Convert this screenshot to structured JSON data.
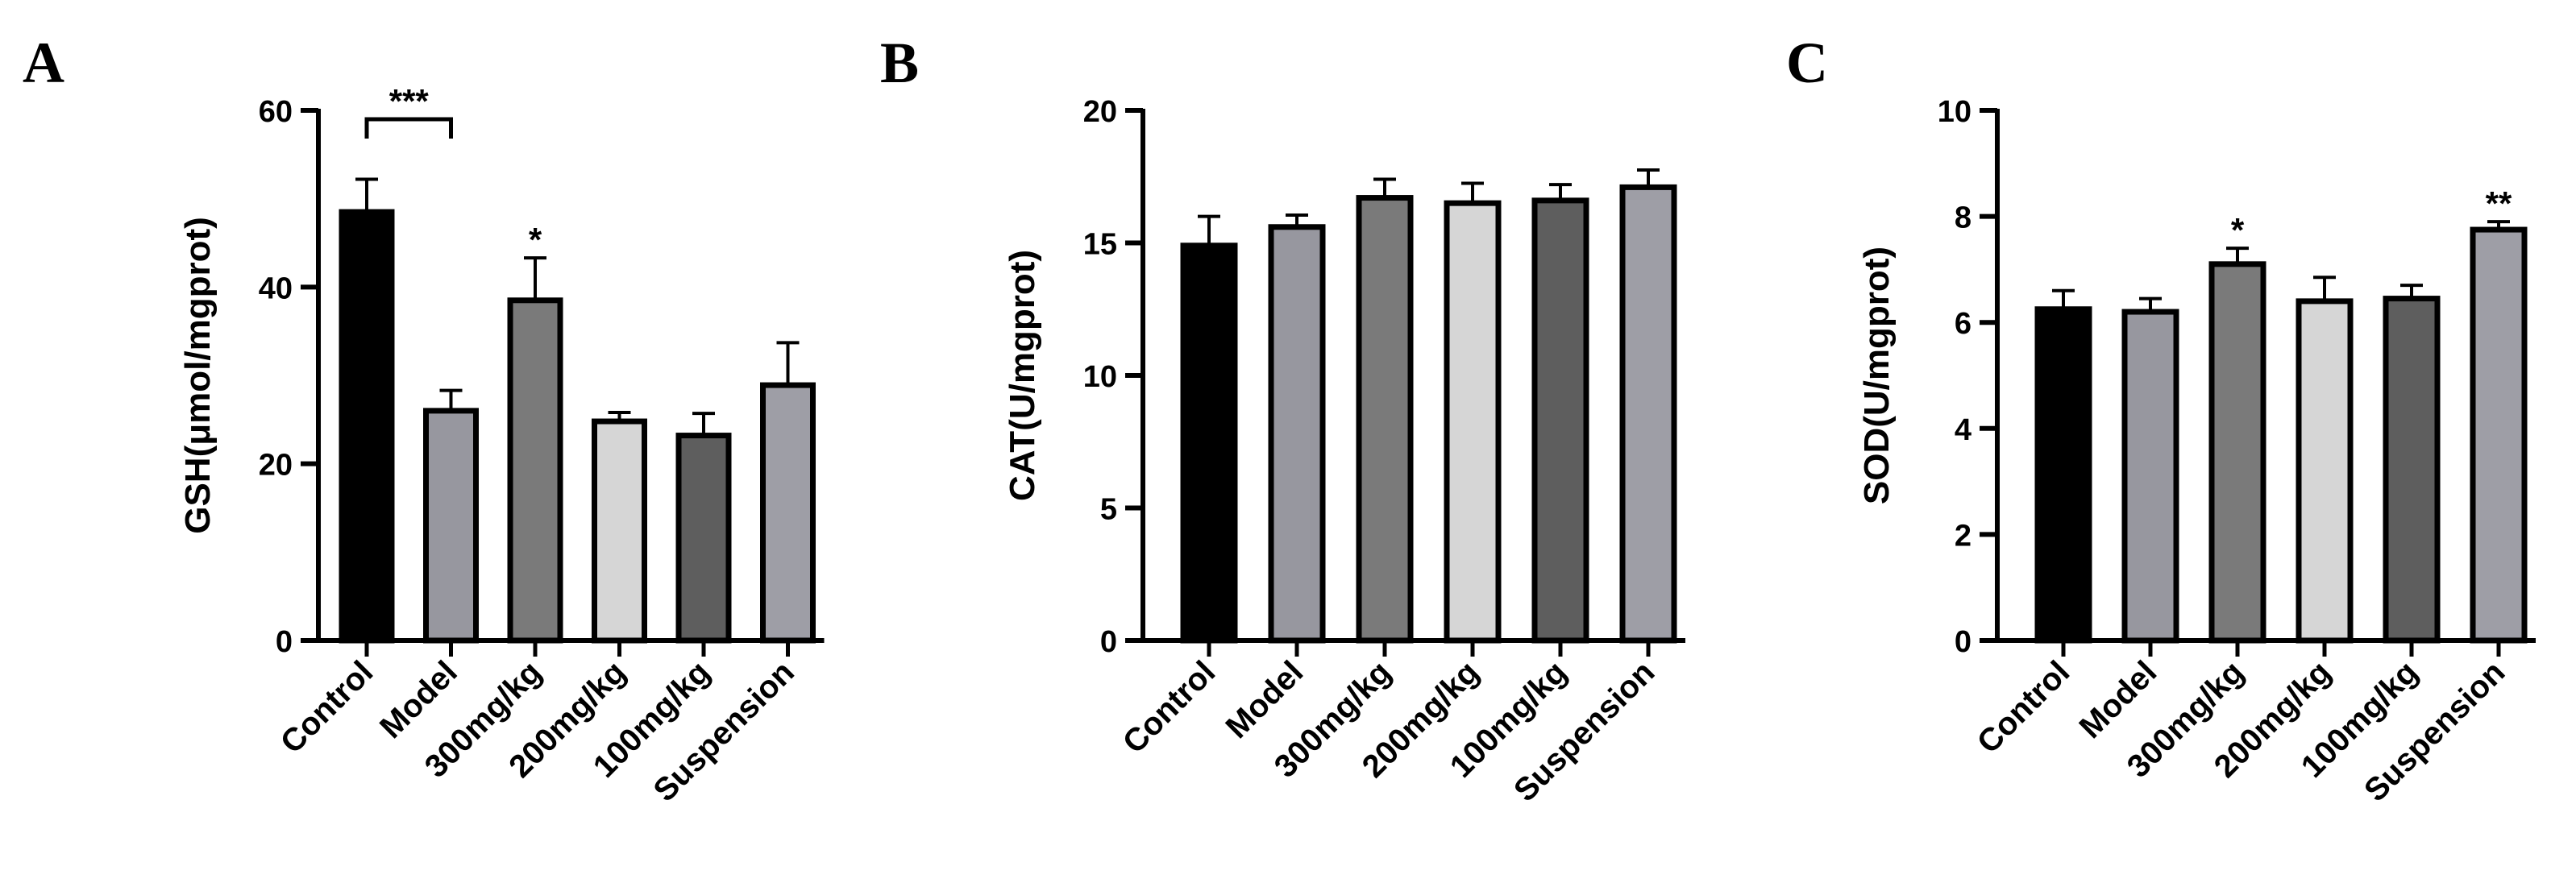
{
  "chart_data": [
    {
      "type": "bar",
      "panel": "A",
      "ylabel": "GSH(μmol/mgprot)",
      "ylim": [
        0,
        60
      ],
      "yticks": [
        0,
        20,
        40,
        60
      ],
      "categories": [
        "Control",
        "Model",
        "300mg/kg",
        "200mg/kg",
        "100mg/kg",
        "Suspension"
      ],
      "values": [
        48.5,
        26.0,
        38.5,
        24.8,
        23.2,
        28.9
      ],
      "errors": [
        3.7,
        2.3,
        4.8,
        1.0,
        2.5,
        4.8
      ],
      "colors": [
        "#000000",
        "#97979f",
        "#7a7a7a",
        "#d6d6d6",
        "#5e5e5e",
        "#9e9ea6"
      ],
      "significance": [
        {
          "label": "***",
          "from": 0,
          "to": 1,
          "y": 59
        },
        {
          "label": "*",
          "index": 2
        }
      ],
      "grid": false
    },
    {
      "type": "bar",
      "panel": "B",
      "ylabel": "CAT(U/mgprot)",
      "ylim": [
        0,
        20
      ],
      "yticks": [
        0,
        5,
        10,
        15,
        20
      ],
      "categories": [
        "Control",
        "Model",
        "300mg/kg",
        "200mg/kg",
        "100mg/kg",
        "Suspension"
      ],
      "values": [
        14.9,
        15.6,
        16.7,
        16.5,
        16.6,
        17.1
      ],
      "errors": [
        1.1,
        0.45,
        0.7,
        0.75,
        0.6,
        0.65
      ],
      "colors": [
        "#000000",
        "#97979f",
        "#7a7a7a",
        "#d6d6d6",
        "#5e5e5e",
        "#9e9ea6"
      ],
      "significance": [],
      "grid": false
    },
    {
      "type": "bar",
      "panel": "C",
      "ylabel": "SOD(U/mgprot)",
      "ylim": [
        0,
        10
      ],
      "yticks": [
        0,
        2,
        4,
        6,
        8,
        10
      ],
      "categories": [
        "Control",
        "Model",
        "300mg/kg",
        "200mg/kg",
        "100mg/kg",
        "Suspension"
      ],
      "values": [
        6.25,
        6.2,
        7.1,
        6.4,
        6.45,
        7.75
      ],
      "errors": [
        0.35,
        0.25,
        0.3,
        0.45,
        0.25,
        0.15
      ],
      "colors": [
        "#000000",
        "#97979f",
        "#7a7a7a",
        "#d6d6d6",
        "#5e5e5e",
        "#9e9ea6"
      ],
      "significance": [
        {
          "label": "*",
          "index": 2
        },
        {
          "label": "**",
          "index": 5
        }
      ],
      "grid": false
    }
  ]
}
